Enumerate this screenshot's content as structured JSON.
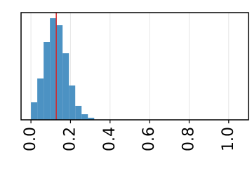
{
  "chart_data": {
    "type": "histogram",
    "bins": [
      0,
      0.032,
      0.064,
      0.096,
      0.128,
      0.16,
      0.192,
      0.224,
      0.256,
      0.288,
      0.32
    ],
    "values": [
      25,
      59,
      111,
      145,
      135,
      95,
      49,
      20,
      8,
      3
    ],
    "color": "#4c92c3",
    "vline": 0.128,
    "vline_color": "#d62728",
    "xlim": [
      -0.05,
      1.1
    ],
    "ylim": [
      0,
      153
    ],
    "xticks": [
      {
        "value": 0,
        "label": "0.0"
      },
      {
        "value": 0.2,
        "label": "0.2"
      },
      {
        "value": 0.4,
        "label": "0.4"
      },
      {
        "value": 0.6,
        "label": "0.6"
      },
      {
        "value": 0.8,
        "label": "0.8"
      },
      {
        "value": 1,
        "label": "1.0"
      }
    ],
    "grid": true
  }
}
